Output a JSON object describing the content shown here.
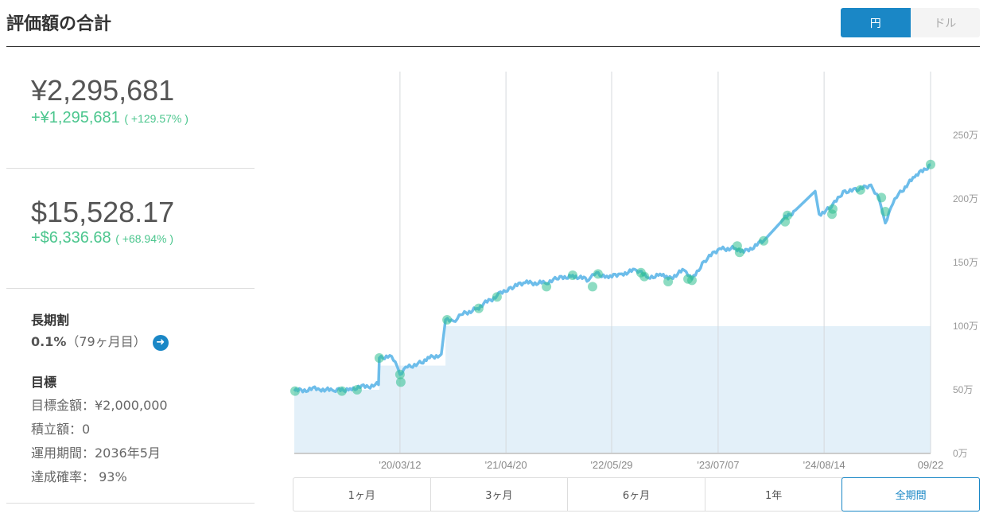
{
  "header": {
    "title": "評価額の合計",
    "currency_toggle": [
      "円",
      "ドル"
    ],
    "active_currency": "円"
  },
  "summary": {
    "jpy": {
      "total": "¥2,295,681",
      "gain": "+¥1,295,681",
      "gain_pct": "( +129.57% )"
    },
    "usd": {
      "total": "$15,528.17",
      "gain": "+$6,336.68",
      "gain_pct": "( +68.94% )"
    }
  },
  "long_term": {
    "heading": "長期割",
    "rate": "0.1%",
    "months": "（79ヶ月目）"
  },
  "goal": {
    "heading": "目標",
    "amount": "目標金額：¥2,000,000",
    "saving": "積立額：0",
    "period": "運用期間：2036年5月",
    "probability": "達成確率： 93%"
  },
  "ranges": [
    "1ヶ月",
    "3ヶ月",
    "6ヶ月",
    "1年",
    "全期間"
  ],
  "active_range": "全期間",
  "colors": {
    "accent": "#1a87c6",
    "gain": "#4cc68e",
    "line": "#6dbdea",
    "area": "#e3f0f9",
    "dot": "#2fbf8f"
  },
  "chart_data": {
    "type": "line",
    "x_unit": "days from start",
    "x_range": [
      0,
      2432
    ],
    "ylim": [
      0,
      300
    ],
    "y_ticks": [
      0,
      50,
      100,
      150,
      200,
      250
    ],
    "y_tick_labels": [
      "0万",
      "50万",
      "100万",
      "150万",
      "200万",
      "250万"
    ],
    "x_ticks": [
      404,
      809,
      1213,
      1620,
      2025,
      2432
    ],
    "x_tick_labels": [
      "'20/03/12",
      "'21/04/20",
      "'22/05/29",
      "'23/07/07",
      "'24/08/14",
      "09/22"
    ],
    "series": [
      {
        "name": "評価額",
        "unit": "万円",
        "points": [
          [
            0,
            49
          ],
          [
            91,
            51
          ],
          [
            152,
            49
          ],
          [
            213,
            51
          ],
          [
            322,
            54
          ],
          [
            325,
            75
          ],
          [
            365,
            77
          ],
          [
            386,
            72
          ],
          [
            404,
            62
          ],
          [
            426,
            68
          ],
          [
            486,
            71
          ],
          [
            517,
            75
          ],
          [
            562,
            78
          ],
          [
            578,
            105
          ],
          [
            608,
            104
          ],
          [
            638,
            109
          ],
          [
            699,
            114
          ],
          [
            775,
            124
          ],
          [
            821,
            130
          ],
          [
            882,
            134
          ],
          [
            958,
            134
          ],
          [
            1003,
            137
          ],
          [
            1064,
            140
          ],
          [
            1125,
            136
          ],
          [
            1155,
            142
          ],
          [
            1201,
            138
          ],
          [
            1246,
            141
          ],
          [
            1307,
            144
          ],
          [
            1353,
            138
          ],
          [
            1398,
            141
          ],
          [
            1429,
            137
          ],
          [
            1490,
            144
          ],
          [
            1520,
            137
          ],
          [
            1566,
            151
          ],
          [
            1626,
            161
          ],
          [
            1687,
            161
          ],
          [
            1718,
            158
          ],
          [
            1794,
            167
          ],
          [
            1870,
            184
          ],
          [
            1915,
            191
          ],
          [
            1991,
            206
          ],
          [
            2006,
            188
          ],
          [
            2052,
            193
          ],
          [
            2098,
            206
          ],
          [
            2158,
            207
          ],
          [
            2204,
            211
          ],
          [
            2234,
            201
          ],
          [
            2259,
            181
          ],
          [
            2280,
            193
          ],
          [
            2310,
            204
          ],
          [
            2371,
            217
          ],
          [
            2432,
            227
          ]
        ]
      },
      {
        "name": "投資元本",
        "unit": "万円",
        "type": "step-area",
        "points": [
          [
            0,
            50
          ],
          [
            325,
            69
          ],
          [
            578,
            100
          ],
          [
            2432,
            100
          ]
        ]
      }
    ],
    "markers": [
      [
        3,
        49
      ],
      [
        182,
        49
      ],
      [
        240,
        50
      ],
      [
        325,
        75
      ],
      [
        404,
        62
      ],
      [
        407,
        56
      ],
      [
        584,
        105
      ],
      [
        705,
        114
      ],
      [
        775,
        123
      ],
      [
        964,
        131
      ],
      [
        1064,
        140
      ],
      [
        1140,
        131
      ],
      [
        1161,
        141
      ],
      [
        1325,
        142
      ],
      [
        1338,
        139
      ],
      [
        1429,
        135
      ],
      [
        1505,
        137
      ],
      [
        1520,
        136
      ],
      [
        1693,
        163
      ],
      [
        1702,
        158
      ],
      [
        1794,
        167
      ],
      [
        1876,
        182
      ],
      [
        1885,
        187
      ],
      [
        2058,
        192
      ],
      [
        2055,
        188
      ],
      [
        2164,
        207
      ],
      [
        2244,
        201
      ],
      [
        2259,
        190
      ],
      [
        2432,
        227
      ]
    ]
  }
}
